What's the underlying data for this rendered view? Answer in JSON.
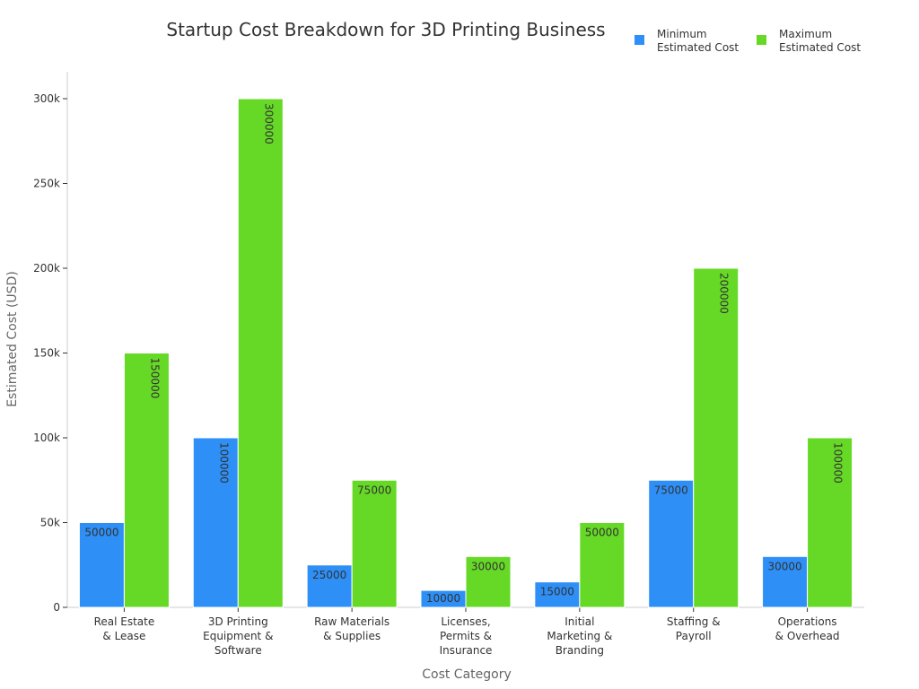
{
  "chart_data": {
    "type": "bar",
    "title": "Startup Cost Breakdown for 3D Printing Business",
    "xlabel": "Cost Category",
    "ylabel": "Estimated Cost (USD)",
    "ylim": [
      0,
      315000
    ],
    "yticks": [
      0,
      50000,
      100000,
      150000,
      200000,
      250000,
      300000
    ],
    "ytick_labels": [
      "0",
      "50k",
      "100k",
      "150k",
      "200k",
      "250k",
      "300k"
    ],
    "categories": [
      [
        "Real Estate",
        "& Lease"
      ],
      [
        "3D Printing",
        "Equipment &",
        "Software"
      ],
      [
        "Raw Materials",
        "& Supplies"
      ],
      [
        "Licenses,",
        "Permits &",
        "Insurance"
      ],
      [
        "Initial",
        "Marketing &",
        "Branding"
      ],
      [
        "Staffing &",
        "Payroll"
      ],
      [
        "Operations",
        "& Overhead"
      ]
    ],
    "series": [
      {
        "name": [
          "Minimum",
          "Estimated Cost"
        ],
        "color": "#2e8ff7",
        "values": [
          50000,
          100000,
          25000,
          10000,
          15000,
          75000,
          30000
        ]
      },
      {
        "name": [
          "Maximum",
          "Estimated Cost"
        ],
        "color": "#66d926",
        "values": [
          150000,
          300000,
          75000,
          30000,
          50000,
          200000,
          100000
        ]
      }
    ],
    "legend": "top-right",
    "grid": false
  }
}
